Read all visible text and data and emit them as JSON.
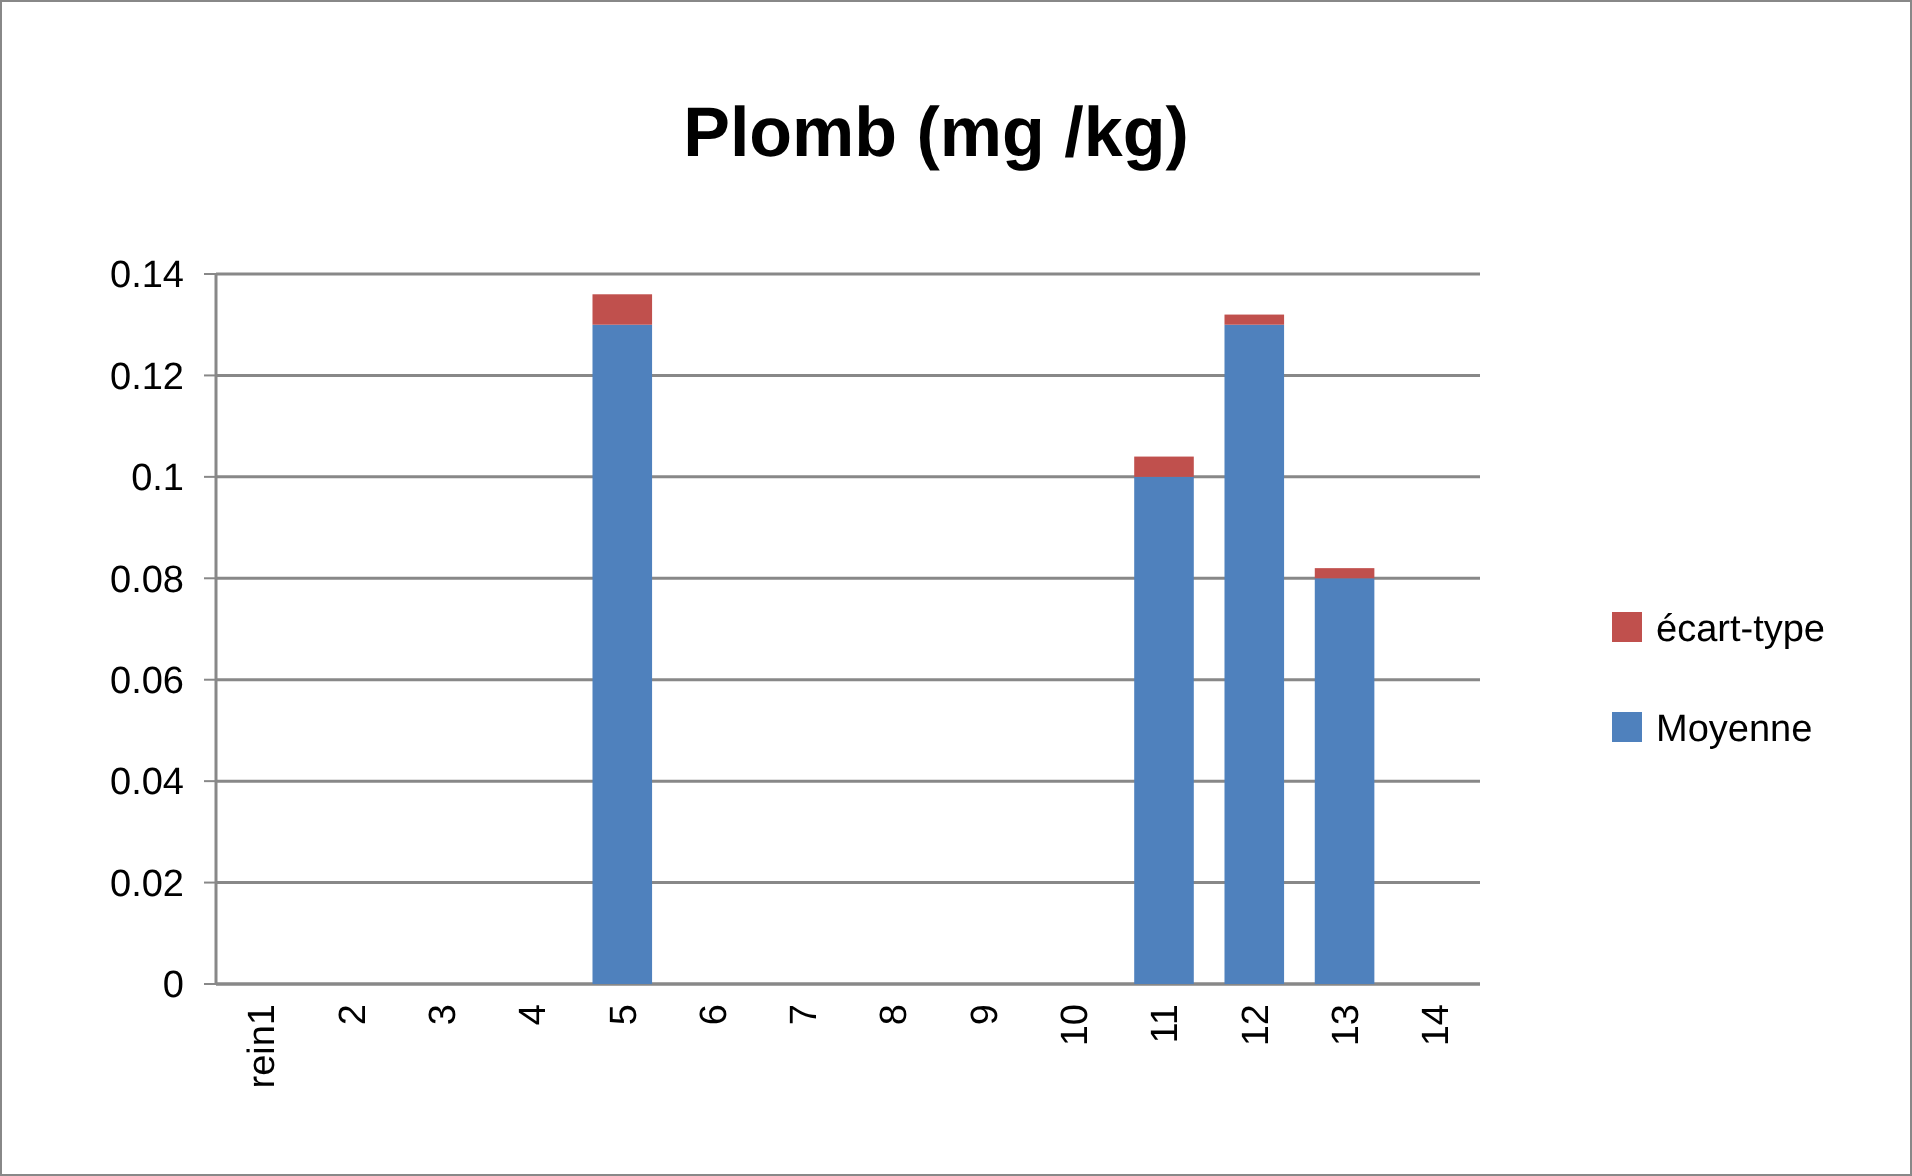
{
  "chart_data": {
    "type": "bar",
    "title": "Plomb (mg /kg)",
    "categories": [
      "rein1",
      "2",
      "3",
      "4",
      "5",
      "6",
      "7",
      "8",
      "9",
      "10",
      "11",
      "12",
      "13",
      "14"
    ],
    "stacked": true,
    "series": [
      {
        "name": "Moyenne",
        "color": "#4f81bd",
        "values": [
          null,
          null,
          null,
          null,
          0.13,
          null,
          null,
          null,
          null,
          null,
          0.1,
          0.13,
          0.08,
          null
        ]
      },
      {
        "name": "écart-type",
        "color": "#c0504d",
        "values": [
          null,
          null,
          null,
          null,
          0.006,
          null,
          null,
          null,
          null,
          null,
          0.004,
          0.002,
          0.002,
          null
        ]
      }
    ],
    "ylim": [
      0,
      0.14
    ],
    "yticks": [
      0,
      0.02,
      0.04,
      0.06,
      0.08,
      0.1,
      0.12,
      0.14
    ],
    "grid": "y",
    "legend": "right"
  }
}
